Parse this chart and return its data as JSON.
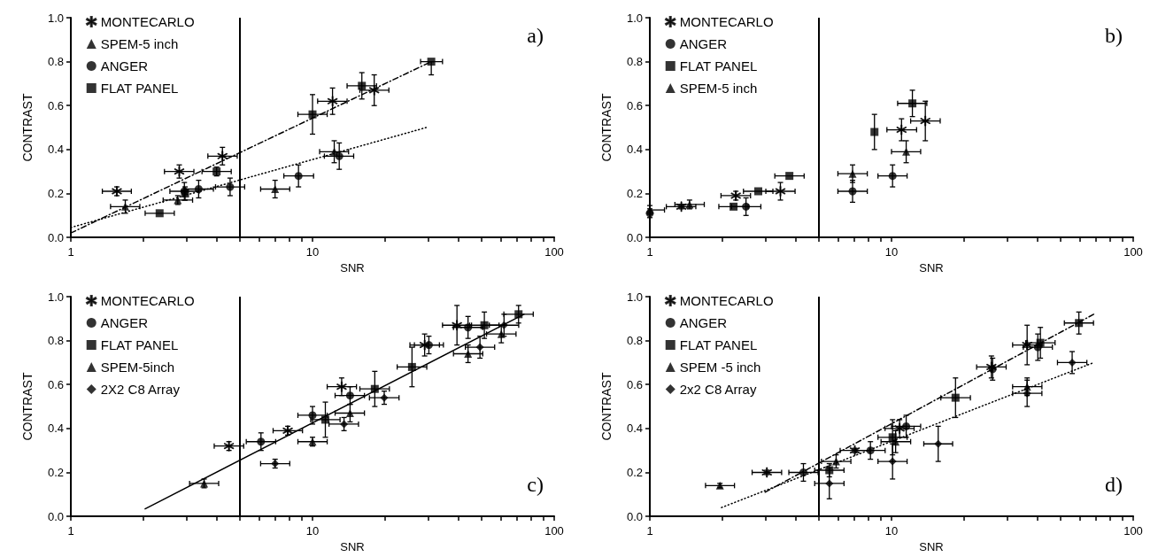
{
  "chart_data": [
    {
      "type": "scatter",
      "xlabel": "SNR",
      "ylabel": "CONTRAST",
      "annotations": [
        "a)"
      ],
      "log": "x",
      "legend": "top left",
      "grid": false,
      "xlim": [
        1,
        100
      ],
      "xticks": [
        1,
        {
          "value": 2,
          "label": null
        },
        {
          "value": 3,
          "label": null
        },
        {
          "value": 4,
          "label": null
        },
        {
          "value": 5,
          "label": null
        },
        {
          "value": 6,
          "label": null
        },
        {
          "value": 7,
          "label": null
        },
        {
          "value": 8,
          "label": null
        },
        {
          "value": 9,
          "label": null
        },
        10,
        {
          "value": 20,
          "label": null
        },
        {
          "value": 30,
          "label": null
        },
        {
          "value": 40,
          "label": null
        },
        {
          "value": 50,
          "label": null
        },
        {
          "value": 60,
          "label": null
        },
        {
          "value": 70,
          "label": null
        },
        {
          "value": 80,
          "label": null
        },
        {
          "value": 90,
          "label": null
        },
        100
      ],
      "ylim": [
        0,
        1
      ],
      "yticks": [
        {
          "value": 0,
          "label": "0.0"
        },
        {
          "value": 0.2,
          "label": "0.2"
        },
        {
          "value": 0.4,
          "label": "0.4"
        },
        {
          "value": 0.6,
          "label": "0.6"
        },
        {
          "value": 0.8,
          "label": "0.8"
        },
        {
          "value": 1,
          "label": "1.0"
        }
      ],
      "ref_lines": [
        {
          "axis": "x",
          "value": 5,
          "color": "#000000",
          "line_style": "solid"
        }
      ],
      "series": [
        {
          "name": "MONTECARLO",
          "color": "#000000",
          "marker": "cross",
          "x": [
            1.55,
            2.81,
            4.24,
            12.1,
            18.0
          ],
          "values": [
            0.21,
            0.3,
            0.37,
            0.62,
            0.67
          ],
          "errors": [
            0.02,
            0.03,
            0.04,
            0.06,
            0.07
          ],
          "xerrors": [
            [
              1.35,
              1.78
            ],
            [
              2.44,
              3.23
            ],
            [
              3.69,
              4.88
            ],
            [
              10.5,
              13.9
            ],
            [
              15.7,
              20.7
            ]
          ]
        },
        {
          "name": "SPEM-5 inch",
          "color": "#000000",
          "marker": "triangle",
          "x": [
            1.68,
            2.77,
            7.0,
            12.3
          ],
          "values": [
            0.14,
            0.17,
            0.22,
            0.39
          ],
          "errors": [
            0.03,
            0.02,
            0.04,
            0.05
          ],
          "xerrors": [
            [
              1.46,
              1.93
            ],
            [
              2.41,
              3.19
            ],
            [
              6.1,
              8.05
            ],
            [
              10.7,
              14.1
            ]
          ]
        },
        {
          "name": "ANGER",
          "color": "#000000",
          "marker": "circle",
          "x": [
            2.95,
            3.38,
            4.56,
            8.75,
            12.9
          ],
          "values": [
            0.21,
            0.22,
            0.23,
            0.28,
            0.37
          ],
          "errors": [
            0.04,
            0.04,
            0.04,
            0.05,
            0.06
          ],
          "xerrors": [
            [
              2.57,
              3.39
            ],
            [
              2.94,
              3.89
            ],
            [
              3.97,
              5.24
            ],
            [
              7.61,
              10.1
            ],
            [
              11.2,
              14.8
            ]
          ]
        },
        {
          "name": "FLAT PANEL",
          "color": "#000000",
          "marker": "square",
          "x": [
            2.33,
            2.97,
            4.01,
            10.0,
            16.0
          ],
          "values": [
            0.11,
            0.2,
            0.3,
            0.56,
            0.69
          ],
          "errors": [
            null,
            0.03,
            0.02,
            0.09,
            0.06
          ],
          "xerrors": [
            [
              2.03,
              2.68
            ],
            null,
            [
              3.49,
              4.61
            ],
            [
              8.7,
              11.5
            ],
            [
              13.9,
              18.4
            ]
          ]
        },
        {
          "color": "#000000",
          "marker": "square",
          "x": [
            31
          ],
          "values": [
            0.8
          ],
          "errors": [
            [
              0.74,
              0.8
            ]
          ],
          "xerrors": [
            [
              28,
              34.5
            ]
          ]
        },
        {
          "type": "line",
          "color": "#000000",
          "marker": "none",
          "line_style": "dashed",
          "x": [
            1,
            31
          ],
          "values": [
            0.02,
            0.8
          ]
        },
        {
          "type": "line",
          "color": "#000000",
          "marker": "none",
          "line_style": "dotted",
          "x": [
            1,
            29.5
          ],
          "values": [
            0.045,
            0.5
          ]
        }
      ]
    },
    {
      "type": "scatter",
      "xlabel": "SNR",
      "ylabel": "CONTRAST",
      "annotations": [
        "b)"
      ],
      "log": "x",
      "legend": "top left",
      "grid": false,
      "xlim": [
        1,
        100
      ],
      "xticks": [
        1,
        {
          "value": 2,
          "label": null
        },
        {
          "value": 3,
          "label": null
        },
        {
          "value": 4,
          "label": null
        },
        {
          "value": 5,
          "label": null
        },
        {
          "value": 6,
          "label": null
        },
        {
          "value": 7,
          "label": null
        },
        {
          "value": 8,
          "label": null
        },
        {
          "value": 9,
          "label": null
        },
        10,
        {
          "value": 20,
          "label": null
        },
        {
          "value": 30,
          "label": null
        },
        {
          "value": 40,
          "label": null
        },
        {
          "value": 50,
          "label": null
        },
        {
          "value": 60,
          "label": null
        },
        {
          "value": 70,
          "label": null
        },
        {
          "value": 80,
          "label": null
        },
        {
          "value": 90,
          "label": null
        },
        100
      ],
      "ylim": [
        0,
        1
      ],
      "yticks": [
        {
          "value": 0,
          "label": "0.0"
        },
        {
          "value": 0.2,
          "label": "0.2"
        },
        {
          "value": 0.4,
          "label": "0.4"
        },
        {
          "value": 0.6,
          "label": "0.6"
        },
        {
          "value": 0.8,
          "label": "0.8"
        },
        {
          "value": 1,
          "label": "1.0"
        }
      ],
      "ref_lines": [
        {
          "axis": "x",
          "value": 5,
          "color": "#000000",
          "line_style": "solid"
        }
      ],
      "series": [
        {
          "name": "MONTECARLO",
          "color": "#000000",
          "marker": "cross",
          "x": [
            1.35,
            2.27,
            3.47,
            11.0,
            13.8
          ],
          "values": [
            0.14,
            0.19,
            0.21,
            0.49,
            0.53
          ],
          "errors": [
            0.01,
            0.02,
            0.04,
            0.05,
            0.09
          ],
          "xerrors": [
            [
              1.17,
              1.55
            ],
            [
              1.97,
              2.61
            ],
            [
              3.02,
              3.99
            ],
            [
              9.57,
              12.7
            ],
            [
              12.0,
              15.9
            ]
          ]
        },
        {
          "name": "ANGER",
          "color": "#000000",
          "marker": "circle",
          "x": [
            1.0,
            2.5,
            6.9,
            10.1
          ],
          "values": [
            0.11,
            0.14,
            0.21,
            0.28
          ],
          "errors": [
            0.02,
            0.04,
            0.05,
            0.05
          ],
          "xerrors": [
            null,
            [
              2.18,
              2.88
            ],
            [
              6.0,
              7.94
            ],
            [
              8.79,
              11.6
            ]
          ]
        },
        {
          "name": "FLAT PANEL",
          "color": "#000000",
          "marker": "square",
          "x": [
            2.22,
            2.81,
            3.78,
            8.5,
            12.2
          ],
          "values": [
            0.14,
            0.21,
            0.28,
            0.48,
            0.61
          ],
          "errors": [
            null,
            null,
            null,
            0.08,
            0.06
          ],
          "xerrors": [
            [
              1.93,
              2.55
            ],
            [
              2.44,
              3.23
            ],
            [
              3.29,
              4.35
            ],
            null,
            [
              10.6,
              14.0
            ]
          ]
        },
        {
          "name": "SPEM-5 inch",
          "color": "#000000",
          "marker": "triangle",
          "x": [
            1.0,
            1.46,
            6.9,
            11.5
          ],
          "values": [
            0.125,
            0.15,
            0.29,
            0.39
          ],
          "errors": [
            0.02,
            0.02,
            0.04,
            0.05
          ],
          "xerrors": [
            [
              1.0,
              1.15
            ],
            [
              1.27,
              1.68
            ],
            [
              6.0,
              7.94
            ],
            [
              10.0,
              13.2
            ]
          ]
        }
      ]
    },
    {
      "type": "scatter",
      "xlabel": "SNR",
      "ylabel": "CONTRAST",
      "annotations": [
        "c)"
      ],
      "log": "x",
      "legend": "top left",
      "grid": false,
      "xlim": [
        1,
        100
      ],
      "xticks": [
        1,
        {
          "value": 2,
          "label": null
        },
        {
          "value": 3,
          "label": null
        },
        {
          "value": 4,
          "label": null
        },
        {
          "value": 5,
          "label": null
        },
        {
          "value": 6,
          "label": null
        },
        {
          "value": 7,
          "label": null
        },
        {
          "value": 8,
          "label": null
        },
        {
          "value": 9,
          "label": null
        },
        10,
        {
          "value": 20,
          "label": null
        },
        {
          "value": 30,
          "label": null
        },
        {
          "value": 40,
          "label": null
        },
        {
          "value": 50,
          "label": null
        },
        {
          "value": 60,
          "label": null
        },
        {
          "value": 70,
          "label": null
        },
        {
          "value": 80,
          "label": null
        },
        {
          "value": 90,
          "label": null
        },
        100
      ],
      "ylim": [
        0,
        1
      ],
      "yticks": [
        {
          "value": 0,
          "label": "0.0"
        },
        {
          "value": 0.2,
          "label": "0.2"
        },
        {
          "value": 0.4,
          "label": "0.4"
        },
        {
          "value": 0.6,
          "label": "0.6"
        },
        {
          "value": 0.8,
          "label": "0.8"
        },
        {
          "value": 1,
          "label": "1.0"
        }
      ],
      "ref_lines": [
        {
          "axis": "x",
          "value": 5,
          "color": "#000000",
          "line_style": "solid"
        }
      ],
      "series": [
        {
          "name": "MONTECARLO",
          "color": "#000000",
          "marker": "cross",
          "x": [
            4.51,
            7.9,
            13.2,
            29.1,
            39.6
          ],
          "values": [
            0.32,
            0.39,
            0.59,
            0.78,
            0.87
          ],
          "errors": [
            0.02,
            0.02,
            0.04,
            0.05,
            0.09
          ],
          "xerrors": [
            [
              3.92,
              5.19
            ],
            [
              6.87,
              9.09
            ],
            [
              11.5,
              15.2
            ],
            [
              25.3,
              33.5
            ],
            [
              34.5,
              45.5
            ]
          ]
        },
        {
          "name": "ANGER",
          "color": "#000000",
          "marker": "circle",
          "x": [
            6.12,
            10,
            14.3,
            30.3,
            44.0
          ],
          "values": [
            0.34,
            0.46,
            0.55,
            0.78,
            0.86
          ],
          "errors": [
            0.04,
            0.04,
            0.04,
            0.04,
            0.05
          ],
          "xerrors": [
            [
              5.32,
              7.04
            ],
            [
              8.7,
              11.5
            ],
            [
              12.4,
              16.4
            ],
            [
              26.4,
              34.8
            ],
            [
              38.3,
              50.6
            ]
          ]
        },
        {
          "name": "FLAT PANEL",
          "color": "#000000",
          "marker": "square",
          "x": [
            11.3,
            18.1,
            25.8,
            51.4,
            71.2
          ],
          "values": [
            0.44,
            0.58,
            0.68,
            0.87,
            0.92
          ],
          "errors": [
            0.08,
            0.08,
            0.09,
            0.06,
            0.04
          ],
          "xerrors": [
            [
              9.83,
              13.0
            ],
            [
              15.7,
              20.8
            ],
            [
              22.4,
              29.7
            ],
            [
              44.7,
              59.1
            ],
            [
              61.9,
              81.9
            ]
          ]
        },
        {
          "name": "SPEM-5inch",
          "color": "#000000",
          "marker": "triangle",
          "x": [
            3.56,
            10.0,
            14.3,
            44.0,
            60.4
          ],
          "values": [
            0.15,
            0.34,
            0.47,
            0.74,
            0.83
          ],
          "errors": [
            0.02,
            0.02,
            0.04,
            0.04,
            0.04
          ],
          "xerrors": [
            [
              3.1,
              4.09
            ],
            [
              8.7,
              11.5
            ],
            [
              12.4,
              16.4
            ],
            [
              38.3,
              50.6
            ],
            [
              52.5,
              69.5
            ]
          ]
        },
        {
          "name": "2X2 C8 Array",
          "color": "#000000",
          "marker": "diamond",
          "x": [
            7.0,
            13.5,
            19.8,
            49.3,
            62
          ],
          "values": [
            0.24,
            0.42,
            0.54,
            0.77,
            0.87
          ],
          "errors": [
            0.02,
            0.03,
            0.03,
            0.05,
            0.05
          ],
          "xerrors": [
            [
              6.1,
              8.05
            ],
            [
              11.7,
              15.5
            ],
            [
              17.2,
              22.8
            ],
            [
              42.9,
              56.7
            ],
            [
              53.9,
              71.3
            ]
          ]
        },
        {
          "type": "line",
          "color": "#000000",
          "marker": "none",
          "line_style": "solid",
          "x": [
            2.03,
            75
          ],
          "values": [
            0.034,
            0.92
          ]
        }
      ]
    },
    {
      "type": "scatter",
      "xlabel": "SNR",
      "ylabel": "CONTRAST",
      "annotations": [
        "d)"
      ],
      "log": "x",
      "legend": "top left",
      "grid": false,
      "xlim": [
        1,
        100
      ],
      "xticks": [
        1,
        {
          "value": 2,
          "label": null
        },
        {
          "value": 3,
          "label": null
        },
        {
          "value": 4,
          "label": null
        },
        {
          "value": 5,
          "label": null
        },
        {
          "value": 6,
          "label": null
        },
        {
          "value": 7,
          "label": null
        },
        {
          "value": 8,
          "label": null
        },
        {
          "value": 9,
          "label": null
        },
        10,
        {
          "value": 20,
          "label": null
        },
        {
          "value": 30,
          "label": null
        },
        {
          "value": 40,
          "label": null
        },
        {
          "value": 50,
          "label": null
        },
        {
          "value": 60,
          "label": null
        },
        {
          "value": 70,
          "label": null
        },
        {
          "value": 80,
          "label": null
        },
        {
          "value": 90,
          "label": null
        },
        100
      ],
      "ylim": [
        0,
        1
      ],
      "yticks": [
        {
          "value": 0,
          "label": "0.0"
        },
        {
          "value": 0.2,
          "label": "0.2"
        },
        {
          "value": 0.4,
          "label": "0.4"
        },
        {
          "value": 0.6,
          "label": "0.6"
        },
        {
          "value": 0.8,
          "label": "0.8"
        },
        {
          "value": 1,
          "label": "1.0"
        }
      ],
      "ref_lines": [
        {
          "axis": "x",
          "value": 5,
          "color": "#000000",
          "line_style": "solid"
        }
      ],
      "series": [
        {
          "name": "MONTECARLO",
          "color": "#000000",
          "marker": "cross",
          "x": [
            3.05,
            7.05,
            10.8,
            25.9,
            36.4
          ],
          "values": [
            0.2,
            0.3,
            0.4,
            0.68,
            0.78
          ],
          "errors": [
            0.01,
            0.01,
            0.04,
            0.05,
            0.09
          ],
          "xerrors": [
            [
              2.65,
              3.51
            ],
            [
              6.13,
              8.11
            ],
            [
              9.4,
              12.4
            ],
            [
              22.5,
              29.8
            ],
            [
              31.7,
              41.9
            ]
          ]
        },
        {
          "name": "ANGER",
          "color": "#000000",
          "marker": "circle",
          "x": [
            4.32,
            8.18,
            11.5,
            26.2,
            40.3
          ],
          "values": [
            0.2,
            0.3,
            0.41,
            0.67,
            0.77
          ],
          "errors": [
            0.04,
            0.04,
            0.05,
            0.05,
            0.06
          ],
          "xerrors": [
            [
              3.76,
              4.97
            ],
            [
              7.12,
              9.41
            ],
            [
              10.0,
              13.2
            ],
            null,
            [
              35.1,
              46.3
            ]
          ]
        },
        {
          "name": "FLAT PANEL",
          "color": "#000000",
          "marker": "square",
          "x": [
            5.53,
            10.1,
            18.4,
            41.3,
            59.6
          ],
          "values": [
            0.21,
            0.36,
            0.54,
            0.79,
            0.88
          ],
          "errors": [
            0.03,
            0.08,
            0.09,
            0.07,
            0.05
          ],
          "xerrors": [
            [
              4.81,
              6.36
            ],
            [
              8.79,
              11.6
            ],
            [
              16.0,
              21.2
            ],
            [
              35.9,
              47.5
            ],
            [
              51.9,
              68.5
            ]
          ]
        },
        {
          "name": "SPEM -5 inch",
          "color": "#000000",
          "marker": "triangle",
          "x": [
            1.95,
            5.9,
            10.4,
            36.4
          ],
          "values": [
            0.14,
            0.25,
            0.34,
            0.59
          ],
          "errors": [
            0.01,
            0.03,
            0.05,
            0.04
          ],
          "xerrors": [
            [
              1.7,
              2.24
            ],
            [
              5.13,
              6.79
            ],
            [
              9.05,
              12.0
            ],
            [
              31.7,
              41.9
            ]
          ]
        },
        {
          "name": "2x2 C8 Array",
          "color": "#000000",
          "marker": "diamond",
          "x": [
            5.53,
            10.1,
            15.6,
            36.4,
            55.9
          ],
          "values": [
            0.15,
            0.25,
            0.33,
            0.56,
            0.7
          ],
          "errors": [
            0.07,
            0.08,
            0.08,
            0.06,
            0.05
          ],
          "xerrors": [
            [
              4.81,
              6.36
            ],
            [
              8.79,
              11.6
            ],
            [
              13.6,
              17.9
            ],
            [
              31.7,
              41.9
            ],
            [
              48.6,
              64.3
            ]
          ]
        },
        {
          "type": "line",
          "color": "#000000",
          "marker": "none",
          "line_style": "dashed",
          "x": [
            3.0,
            68.7
          ],
          "values": [
            0.11,
            0.92
          ]
        },
        {
          "type": "line",
          "color": "#000000",
          "marker": "none",
          "line_style": "dotted",
          "x": [
            1.98,
            68.7
          ],
          "values": [
            0.04,
            0.7
          ]
        }
      ]
    }
  ]
}
